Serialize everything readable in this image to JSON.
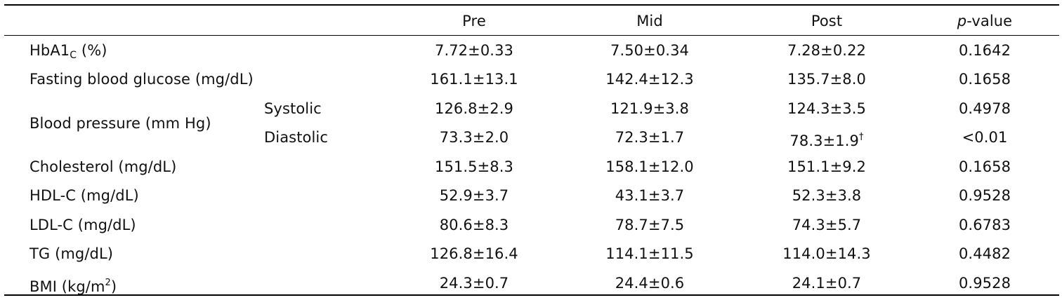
{
  "header": {
    "pre": "Pre",
    "mid": "Mid",
    "post": "Post",
    "p_letter": "p",
    "p_rest": "-value"
  },
  "rows": [
    {
      "label_main": "HbA1",
      "label_sub": "C",
      "label_tail": " (%)",
      "pre": "7.72±0.33",
      "mid": "7.50±0.34",
      "post": "7.28±0.22",
      "p": "0.1642"
    },
    {
      "label": "Fasting blood glucose (mg/dL)",
      "pre": "161.1±13.1",
      "mid": "142.4±12.3",
      "post": "135.7±8.0",
      "p": "0.1658"
    },
    {
      "group_label": "Blood pressure (mm Hg)",
      "sublabel": "Systolic",
      "pre": "126.8±2.9",
      "mid": "121.9±3.8",
      "post": "124.3±3.5",
      "p": "0.4978"
    },
    {
      "sublabel": "Diastolic",
      "pre": "73.3±2.0",
      "mid": "72.3±1.7",
      "post": "78.3±1.9",
      "post_mark": "†",
      "p": "<0.01"
    },
    {
      "label": "Cholesterol (mg/dL)",
      "pre": "151.5±8.3",
      "mid": "158.1±12.0",
      "post": "151.1±9.2",
      "p": "0.1658"
    },
    {
      "label": "HDL-C (mg/dL)",
      "pre": "52.9±3.7",
      "mid": "43.1±3.7",
      "post": "52.3±3.8",
      "p": "0.9528"
    },
    {
      "label": "LDL-C (mg/dL)",
      "pre": "80.6±8.3",
      "mid": "78.7±7.5",
      "post": "74.3±5.7",
      "p": "0.6783"
    },
    {
      "label": "TG (mg/dL)",
      "pre": "126.8±16.4",
      "mid": "114.1±11.5",
      "post": "114.0±14.3",
      "p": "0.4482"
    },
    {
      "label_main": "BMI (kg/m",
      "label_sup": "2",
      "label_tail": ")",
      "pre": "24.3±0.7",
      "mid": "24.4±0.6",
      "post": "24.1±0.7",
      "p": "0.9528"
    }
  ]
}
